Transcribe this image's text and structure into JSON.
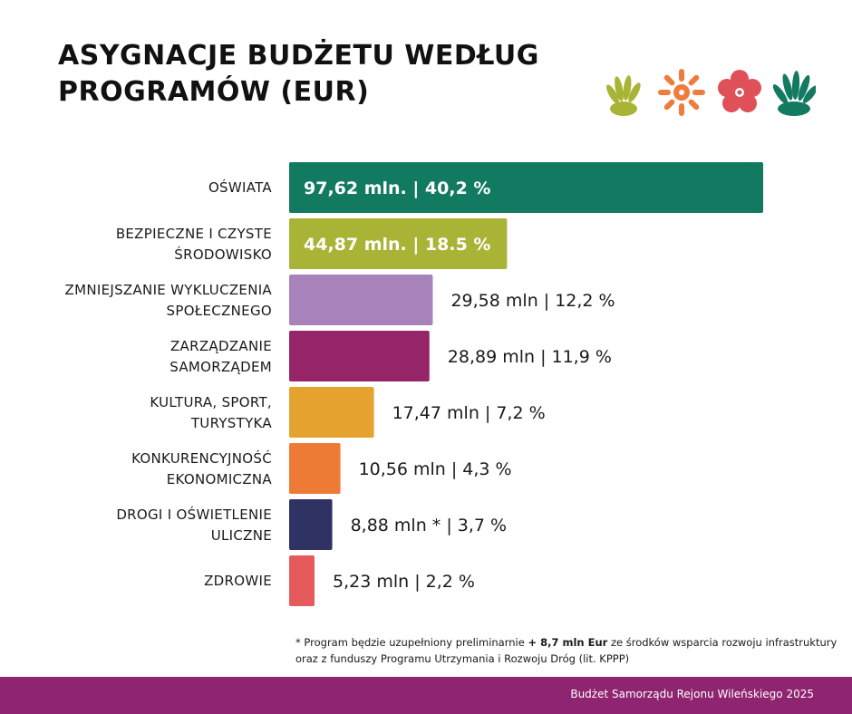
{
  "title": {
    "line1": "ASYGNACJE BUDŻETU WEDŁUG",
    "line2": "PROGRAMÓW (EUR)"
  },
  "decoration": {
    "icons": [
      "fan-leaf-icon",
      "sun-flower-icon",
      "blossom-icon",
      "shell-icon"
    ],
    "colors": [
      "#a9b336",
      "#ef7b3c",
      "#e05058",
      "#137a62"
    ]
  },
  "chart_data": {
    "type": "bar",
    "orientation": "horizontal",
    "categories": [
      [
        "OŚWIATA"
      ],
      [
        "BEZPIECZNE I CZYSTE",
        "ŚRODOWISKO"
      ],
      [
        "ZMNIEJSZANIE WYKLUCZENIA",
        "SPOŁECZNEGO"
      ],
      [
        "ZARZĄDZANIE",
        "SAMORZĄDEM"
      ],
      [
        "KULTURA, SPORT,",
        "TURYSTYKA"
      ],
      [
        "KONKURENCYJNOŚĆ",
        "EKONOMICZNA"
      ],
      [
        "DROGI I OŚWIETLENIE",
        "ULICZNE"
      ],
      [
        "ZDROWIE"
      ]
    ],
    "values": [
      97.62,
      44.87,
      29.58,
      28.89,
      17.47,
      10.56,
      8.88,
      5.23
    ],
    "value_labels": [
      "97,62 mln.  |  40,2 %",
      "44,87 mln.  |  18.5 %",
      "29,58 mln  |  12,2 %",
      "28,89 mln  |  11,9 %",
      "17,47 mln  |  7,2 %",
      "10,56 mln  |  4,3 %",
      "8,88 mln *  |  3,7 %",
      "5,23 mln  |  2,2 %"
    ],
    "label_inside": [
      true,
      true,
      false,
      false,
      false,
      false,
      false,
      false
    ],
    "colors": [
      "#137a62",
      "#a9b336",
      "#a882bb",
      "#962469",
      "#e6a22e",
      "#ee7b35",
      "#2f3263",
      "#e55a5a"
    ],
    "xlim": [
      0,
      97.62
    ],
    "grid": false,
    "legend": "none"
  },
  "footnote": {
    "part1": "* Program będzie uzupełniony preliminarnie ",
    "bold": "+ 8,7 mln Eur",
    "part2": " ze środków wsparcia rozwoju infrastruktury oraz z funduszy Programu Utrzymania i Rozwoju Dróg (lit. KPPP)"
  },
  "footer": {
    "text": "Budżet Samorządu Rejonu Wileńskiego 2025"
  }
}
